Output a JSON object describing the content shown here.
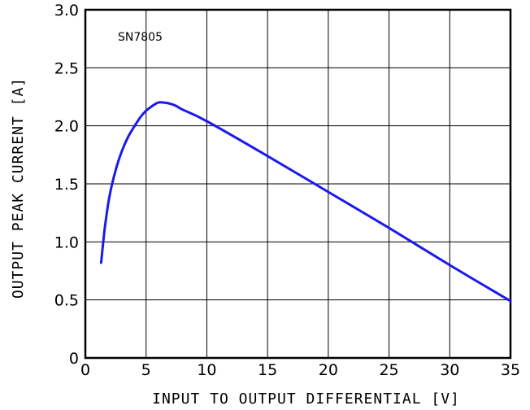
{
  "chart_data": {
    "type": "line",
    "title": "",
    "xlabel": "INPUT TO OUTPUT DIFFERENTIAL [V]",
    "ylabel": "OUTPUT PEAK CURRENT [A]",
    "annotation": "SN7805",
    "xlim": [
      0,
      35
    ],
    "ylim": [
      0,
      3.0
    ],
    "x_ticks": [
      0,
      5,
      10,
      15,
      20,
      25,
      30,
      35
    ],
    "x_tick_labels": [
      "0",
      "5",
      "10",
      "15",
      "20",
      "25",
      "30",
      "35"
    ],
    "y_ticks": [
      0,
      0.5,
      1.0,
      1.5,
      2.0,
      2.5,
      3.0
    ],
    "y_tick_labels": [
      "0",
      "0.5",
      "1.0",
      "1.5",
      "2.0",
      "2.5",
      "3.0"
    ],
    "grid": true,
    "series_color": "#1a1aee",
    "series": [
      {
        "name": "",
        "x": [
          1.3,
          1.6,
          2.0,
          2.5,
          3.0,
          3.5,
          4.0,
          4.5,
          5.0,
          5.5,
          6.0,
          6.5,
          7.0,
          7.5,
          8.0,
          10,
          15,
          20,
          25,
          30,
          35
        ],
        "y": [
          0.82,
          1.12,
          1.4,
          1.62,
          1.78,
          1.9,
          1.99,
          2.07,
          2.13,
          2.17,
          2.2,
          2.2,
          2.19,
          2.17,
          2.14,
          2.04,
          1.74,
          1.43,
          1.12,
          0.8,
          0.49
        ]
      }
    ]
  }
}
